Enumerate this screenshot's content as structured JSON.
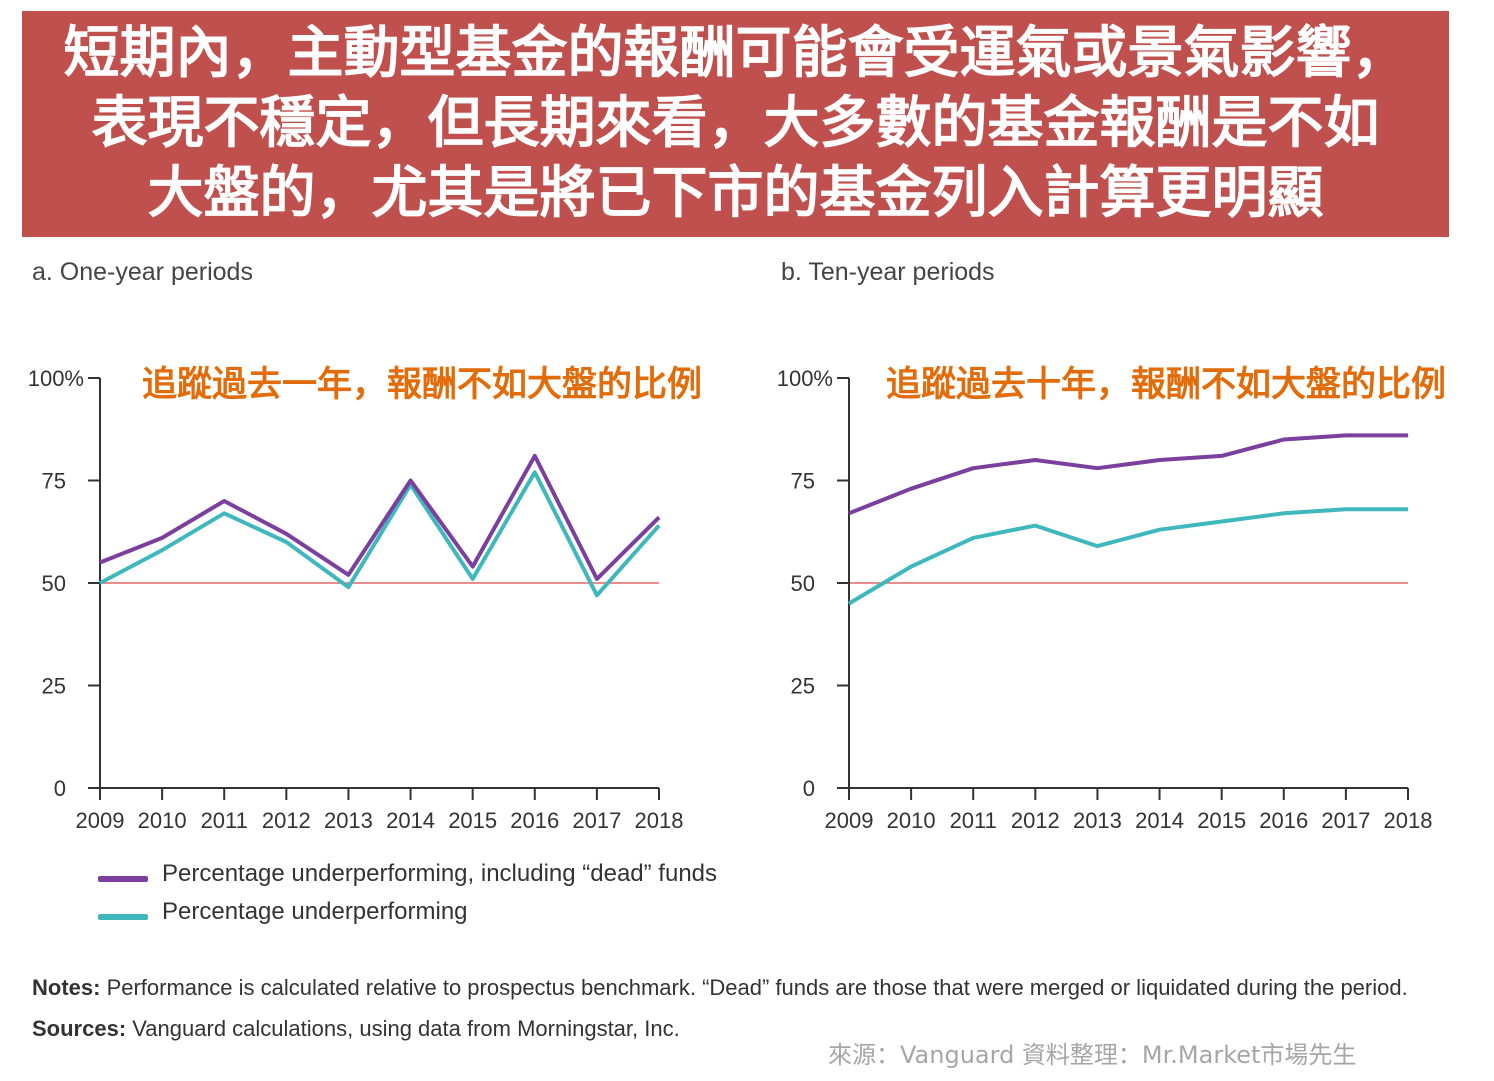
{
  "banner": {
    "lines": [
      "短期內，主動型基金的報酬可能會受運氣或景氣影響，",
      "表現不穩定，但長期來看，大多數的基金報酬是不如",
      "大盤的，尤其是將已下市的基金列入計算更明顯"
    ],
    "color": "#c0504d"
  },
  "chart_data": [
    {
      "type": "line",
      "subtitle": "a. One-year periods",
      "annotation": "追蹤過去一年，報酬不如大盤的比例",
      "x": [
        "2009",
        "2010",
        "2011",
        "2012",
        "2013",
        "2014",
        "2015",
        "2016",
        "2017",
        "2018"
      ],
      "y_ticks": [
        "0",
        "25",
        "50",
        "75",
        "100%"
      ],
      "ylim": [
        0,
        100
      ],
      "reference_line": 50,
      "series": [
        {
          "name": "Percentage underperforming, including “dead” funds",
          "color": "#7b3f9e",
          "values": [
            55,
            61,
            70,
            62,
            52,
            75,
            54,
            81,
            51,
            66
          ]
        },
        {
          "name": "Percentage underperforming",
          "color": "#3fb8bd",
          "values": [
            50,
            58,
            67,
            60,
            49,
            74,
            51,
            77,
            47,
            64
          ]
        }
      ]
    },
    {
      "type": "line",
      "subtitle": "b. Ten-year periods",
      "annotation": "追蹤過去十年，報酬不如大盤的比例",
      "x": [
        "2009",
        "2010",
        "2011",
        "2012",
        "2013",
        "2014",
        "2015",
        "2016",
        "2017",
        "2018"
      ],
      "y_ticks": [
        "0",
        "25",
        "50",
        "75",
        "100%"
      ],
      "ylim": [
        0,
        100
      ],
      "reference_line": 50,
      "series": [
        {
          "name": "Percentage underperforming, including “dead” funds",
          "color": "#7b3f9e",
          "values": [
            67,
            73,
            78,
            80,
            78,
            80,
            81,
            85,
            86,
            86
          ]
        },
        {
          "name": "Percentage underperforming",
          "color": "#3fb8bd",
          "values": [
            45,
            54,
            61,
            64,
            59,
            63,
            65,
            67,
            68,
            68
          ]
        }
      ]
    }
  ],
  "legend": [
    {
      "label": "Percentage underperforming, including “dead” funds",
      "color": "#7b3f9e"
    },
    {
      "label": "Percentage underperforming",
      "color": "#3fb8bd"
    }
  ],
  "notes": {
    "notes_label": "Notes:",
    "notes_text": " Performance is calculated relative to prospectus benchmark. “Dead” funds are those that were merged or liquidated during the period.",
    "sources_label": "Sources:",
    "sources_text": " Vanguard calculations, using data from Morningstar, Inc."
  },
  "credit": "來源：Vanguard  資料整理：Mr.Market市場先生",
  "colors": {
    "reference_line": "#e06666",
    "annotation": "#e36c0a",
    "axis": "#333333"
  }
}
